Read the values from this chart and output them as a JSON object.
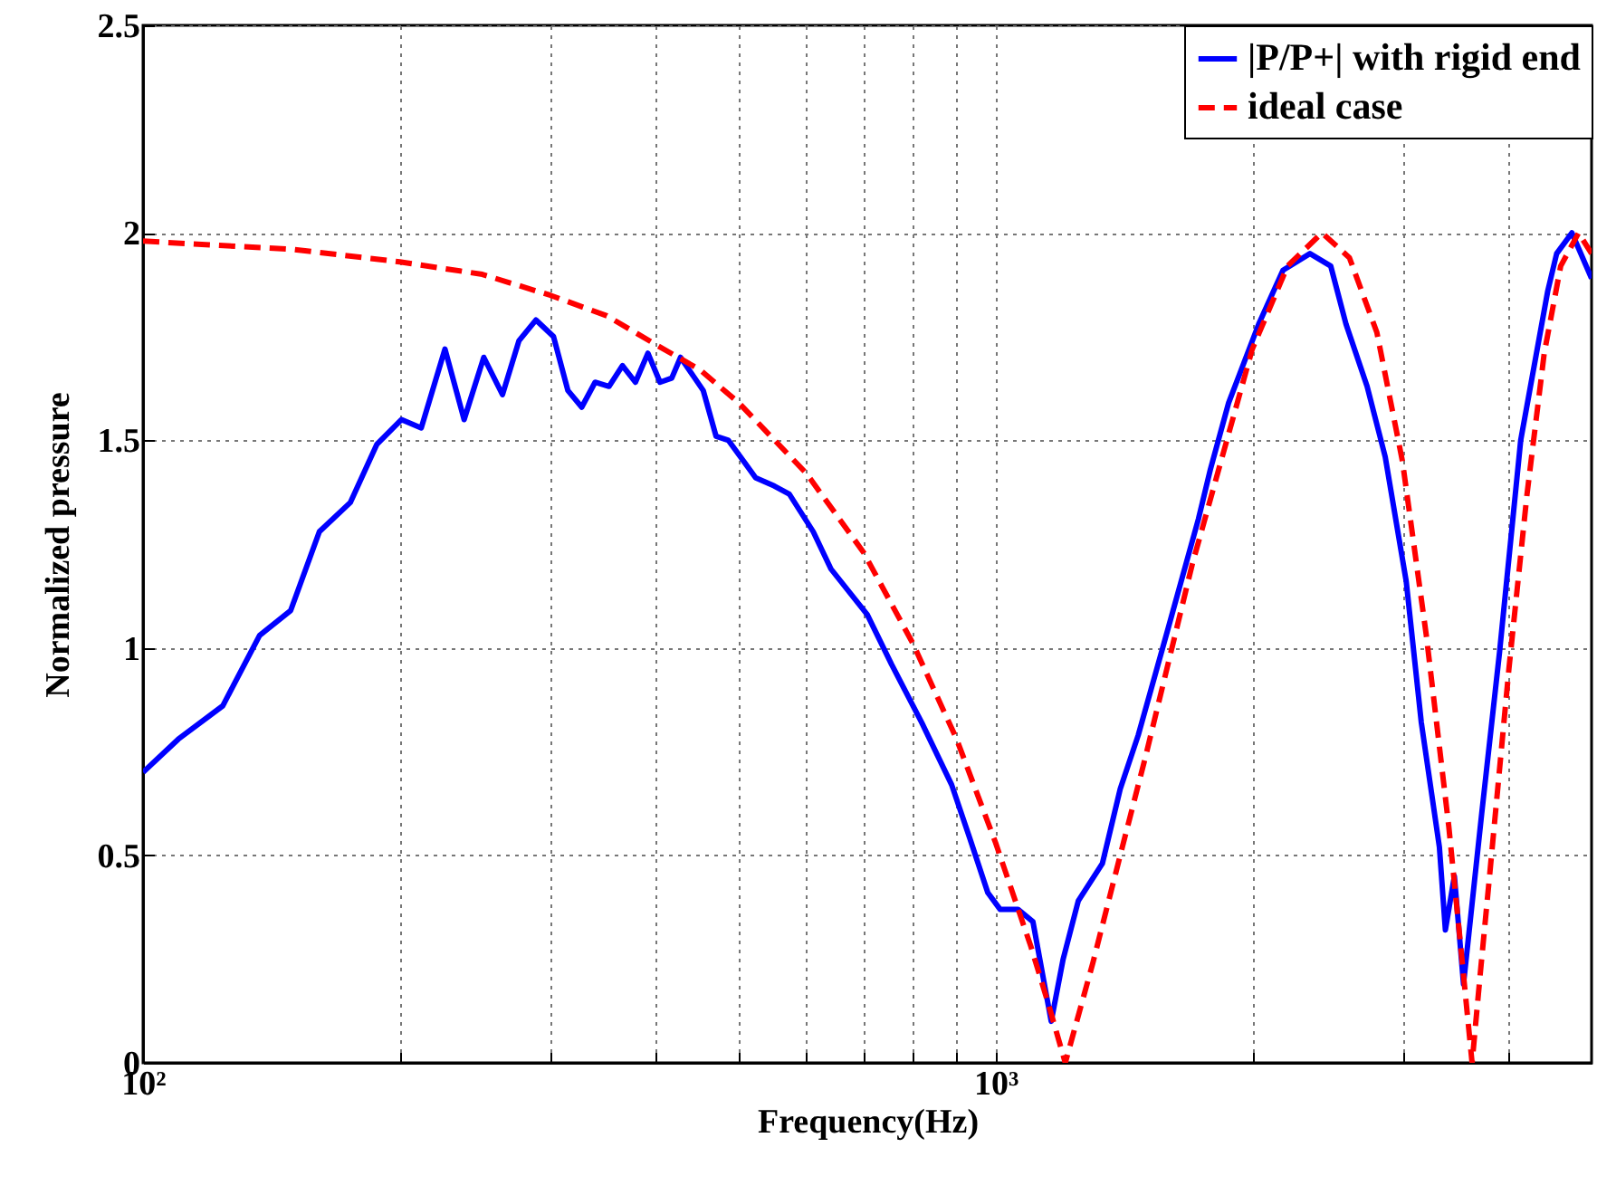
{
  "chart_data": {
    "type": "line",
    "xlabel": "Frequency(Hz)",
    "ylabel": "Normalized pressure",
    "log": "x",
    "grid": true,
    "legend": "top right",
    "marker": "none",
    "xlim": [
      100,
      5000
    ],
    "xticks": [
      {
        "value": 100,
        "label": "10²"
      },
      {
        "value": 200,
        "label": null
      },
      {
        "value": 300,
        "label": null
      },
      {
        "value": 400,
        "label": null
      },
      {
        "value": 500,
        "label": null
      },
      {
        "value": 600,
        "label": null
      },
      {
        "value": 700,
        "label": null
      },
      {
        "value": 800,
        "label": null
      },
      {
        "value": 900,
        "label": null
      },
      {
        "value": 1000,
        "label": "10³"
      },
      {
        "value": 2000,
        "label": null
      },
      {
        "value": 3000,
        "label": null
      },
      {
        "value": 4000,
        "label": null
      }
    ],
    "ylim": [
      0,
      2.5
    ],
    "yticks": [
      0,
      0.5,
      1,
      1.5,
      2,
      2.5
    ],
    "series": [
      {
        "name": "|P/P+| with rigid end",
        "color": "#0000ff",
        "line_style": "solid",
        "x": [
          100,
          110,
          124,
          137,
          149,
          161,
          175,
          188,
          201,
          212,
          226,
          238,
          251,
          264,
          276,
          289,
          303,
          315,
          327,
          339,
          352,
          365,
          378,
          391,
          404,
          417,
          427,
          454,
          470,
          486,
          523,
          550,
          573,
          611,
          641,
          707,
          755,
          819,
          888,
          933,
          979,
          1012,
          1062,
          1106,
          1143,
          1162,
          1200,
          1250,
          1334,
          1400,
          1470,
          1595,
          1729,
          1786,
          1876,
          2035,
          2173,
          2337,
          2472,
          2576,
          2727,
          2864,
          3031,
          3157,
          3315,
          3369,
          3452,
          3538,
          3716,
          3900,
          4129,
          4442,
          4550,
          4741,
          5000
        ],
        "values": [
          0.7,
          0.78,
          0.86,
          1.03,
          1.09,
          1.28,
          1.35,
          1.49,
          1.55,
          1.53,
          1.72,
          1.55,
          1.7,
          1.61,
          1.74,
          1.79,
          1.75,
          1.62,
          1.58,
          1.64,
          1.63,
          1.68,
          1.64,
          1.71,
          1.64,
          1.65,
          1.7,
          1.62,
          1.51,
          1.5,
          1.41,
          1.39,
          1.37,
          1.28,
          1.19,
          1.08,
          0.96,
          0.82,
          0.67,
          0.54,
          0.41,
          0.37,
          0.37,
          0.34,
          0.18,
          0.1,
          0.25,
          0.39,
          0.48,
          0.66,
          0.79,
          1.05,
          1.31,
          1.43,
          1.59,
          1.78,
          1.91,
          1.95,
          1.92,
          1.78,
          1.63,
          1.46,
          1.16,
          0.82,
          0.52,
          0.32,
          0.45,
          0.19,
          0.6,
          0.99,
          1.5,
          1.86,
          1.95,
          2.0,
          1.89
        ]
      },
      {
        "name": "ideal case",
        "color": "#ff0000",
        "line_style": "dashed",
        "x": [
          100,
          150,
          200,
          250,
          300,
          350,
          400,
          450,
          500,
          600,
          700,
          800,
          900,
          1000,
          1100,
          1150,
          1207,
          1300,
          1400,
          1500,
          1700,
          2000,
          2200,
          2414,
          2600,
          2800,
          3000,
          3200,
          3400,
          3500,
          3621,
          3700,
          3800,
          4000,
          4200,
          4400,
          4600,
          4828,
          5000
        ],
        "values": [
          1.98,
          1.96,
          1.93,
          1.9,
          1.85,
          1.8,
          1.73,
          1.67,
          1.59,
          1.42,
          1.23,
          1.01,
          0.78,
          0.53,
          0.28,
          0.15,
          0,
          0.24,
          0.5,
          0.74,
          1.2,
          1.72,
          1.92,
          2.0,
          1.94,
          1.76,
          1.45,
          1.03,
          0.57,
          0.31,
          0,
          0.21,
          0.46,
          0.95,
          1.37,
          1.71,
          1.92,
          2.0,
          1.95
        ]
      }
    ]
  }
}
